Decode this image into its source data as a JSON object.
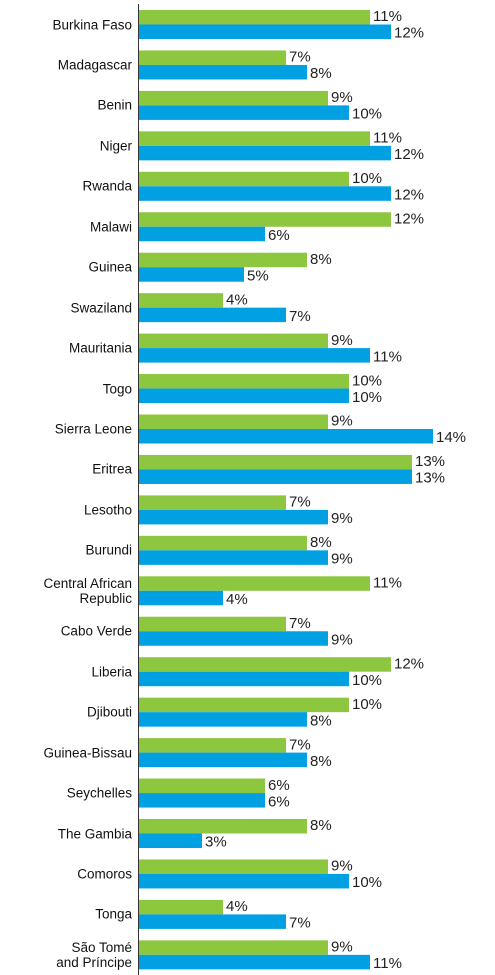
{
  "chart_data": {
    "type": "bar",
    "orientation": "horizontal",
    "categories": [
      "Burkina Faso",
      "Madagascar",
      "Benin",
      "Niger",
      "Rwanda",
      "Malawi",
      "Guinea",
      "Swaziland",
      "Mauritania",
      "Togo",
      "Sierra Leone",
      "Eritrea",
      "Lesotho",
      "Burundi",
      "Central African\nRepublic",
      "Cabo Verde",
      "Liberia",
      "Djibouti",
      "Guinea-Bissau",
      "Seychelles",
      "The Gambia",
      "Comoros",
      "Tonga",
      "São Tomé\nand Príncipe"
    ],
    "series": [
      {
        "color": "#8dc63f",
        "values": [
          11,
          7,
          9,
          11,
          10,
          12,
          8,
          4,
          9,
          10,
          9,
          13,
          7,
          8,
          11,
          7,
          12,
          10,
          7,
          6,
          8,
          9,
          4,
          9
        ],
        "value_labels": [
          "11%",
          "7%",
          "9%",
          "11%",
          "10%",
          "12%",
          "8%",
          "4%",
          "9%",
          "10%",
          "9%",
          "13%",
          "7%",
          "8%",
          "11%",
          "7%",
          "12%",
          "10%",
          "7%",
          "6%",
          "8%",
          "9%",
          "4%",
          "9%"
        ]
      },
      {
        "color": "#00a0e3",
        "values": [
          12,
          8,
          10,
          12,
          12,
          6,
          5,
          7,
          11,
          10,
          14,
          13,
          9,
          9,
          4,
          9,
          10,
          8,
          8,
          6,
          3,
          10,
          7,
          11
        ],
        "value_labels": [
          "12%",
          "8%",
          "10%",
          "12%",
          "12%",
          "6%",
          "5%",
          "7%",
          "11%",
          "10%",
          "14%",
          "13%",
          "9%",
          "9%",
          "4%",
          "9%",
          "10%",
          "8%",
          "8%",
          "6%",
          "3%",
          "10%",
          "7%",
          "11%"
        ]
      }
    ]
  }
}
